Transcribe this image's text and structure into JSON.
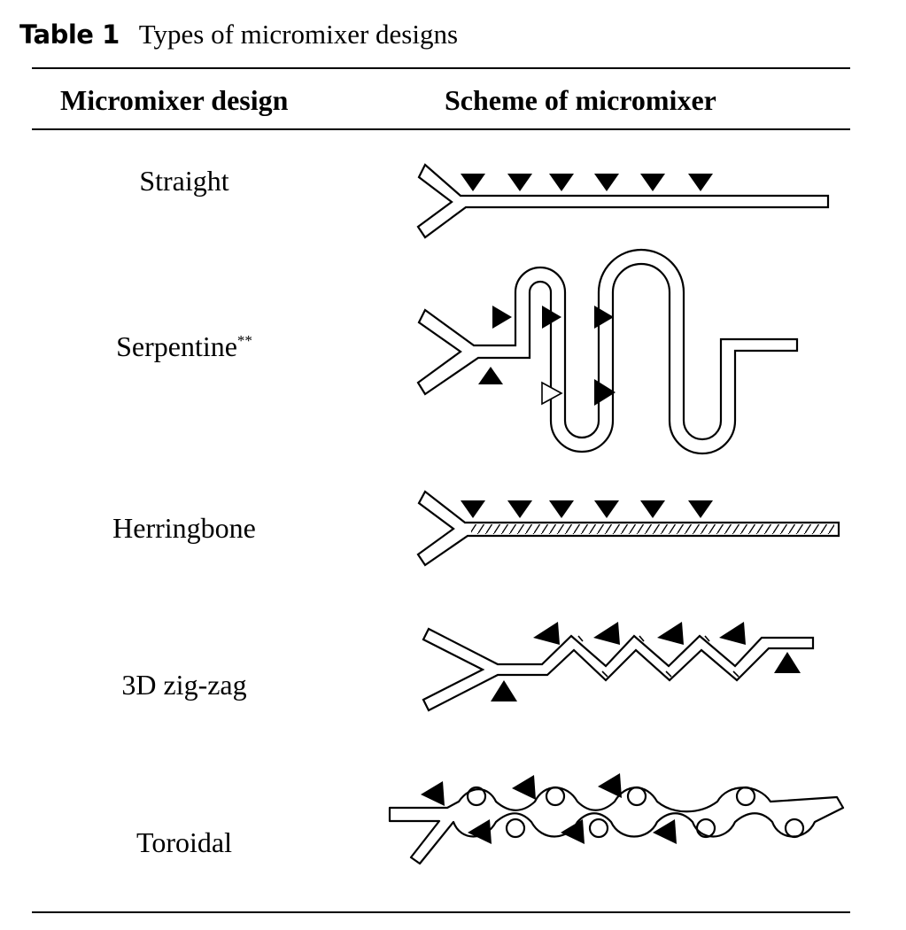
{
  "caption": {
    "label": "Table 1",
    "title": "Types of micromixer designs"
  },
  "table": {
    "headers": {
      "design": "Micromixer design",
      "scheme": "Scheme of micromixer"
    },
    "rows": [
      {
        "name": "Straight",
        "note": ""
      },
      {
        "name": "Serpentine",
        "note": "**"
      },
      {
        "name": "Herringbone",
        "note": ""
      },
      {
        "name": "3D zig-zag",
        "note": ""
      },
      {
        "name": "Toroidal",
        "note": ""
      }
    ]
  }
}
